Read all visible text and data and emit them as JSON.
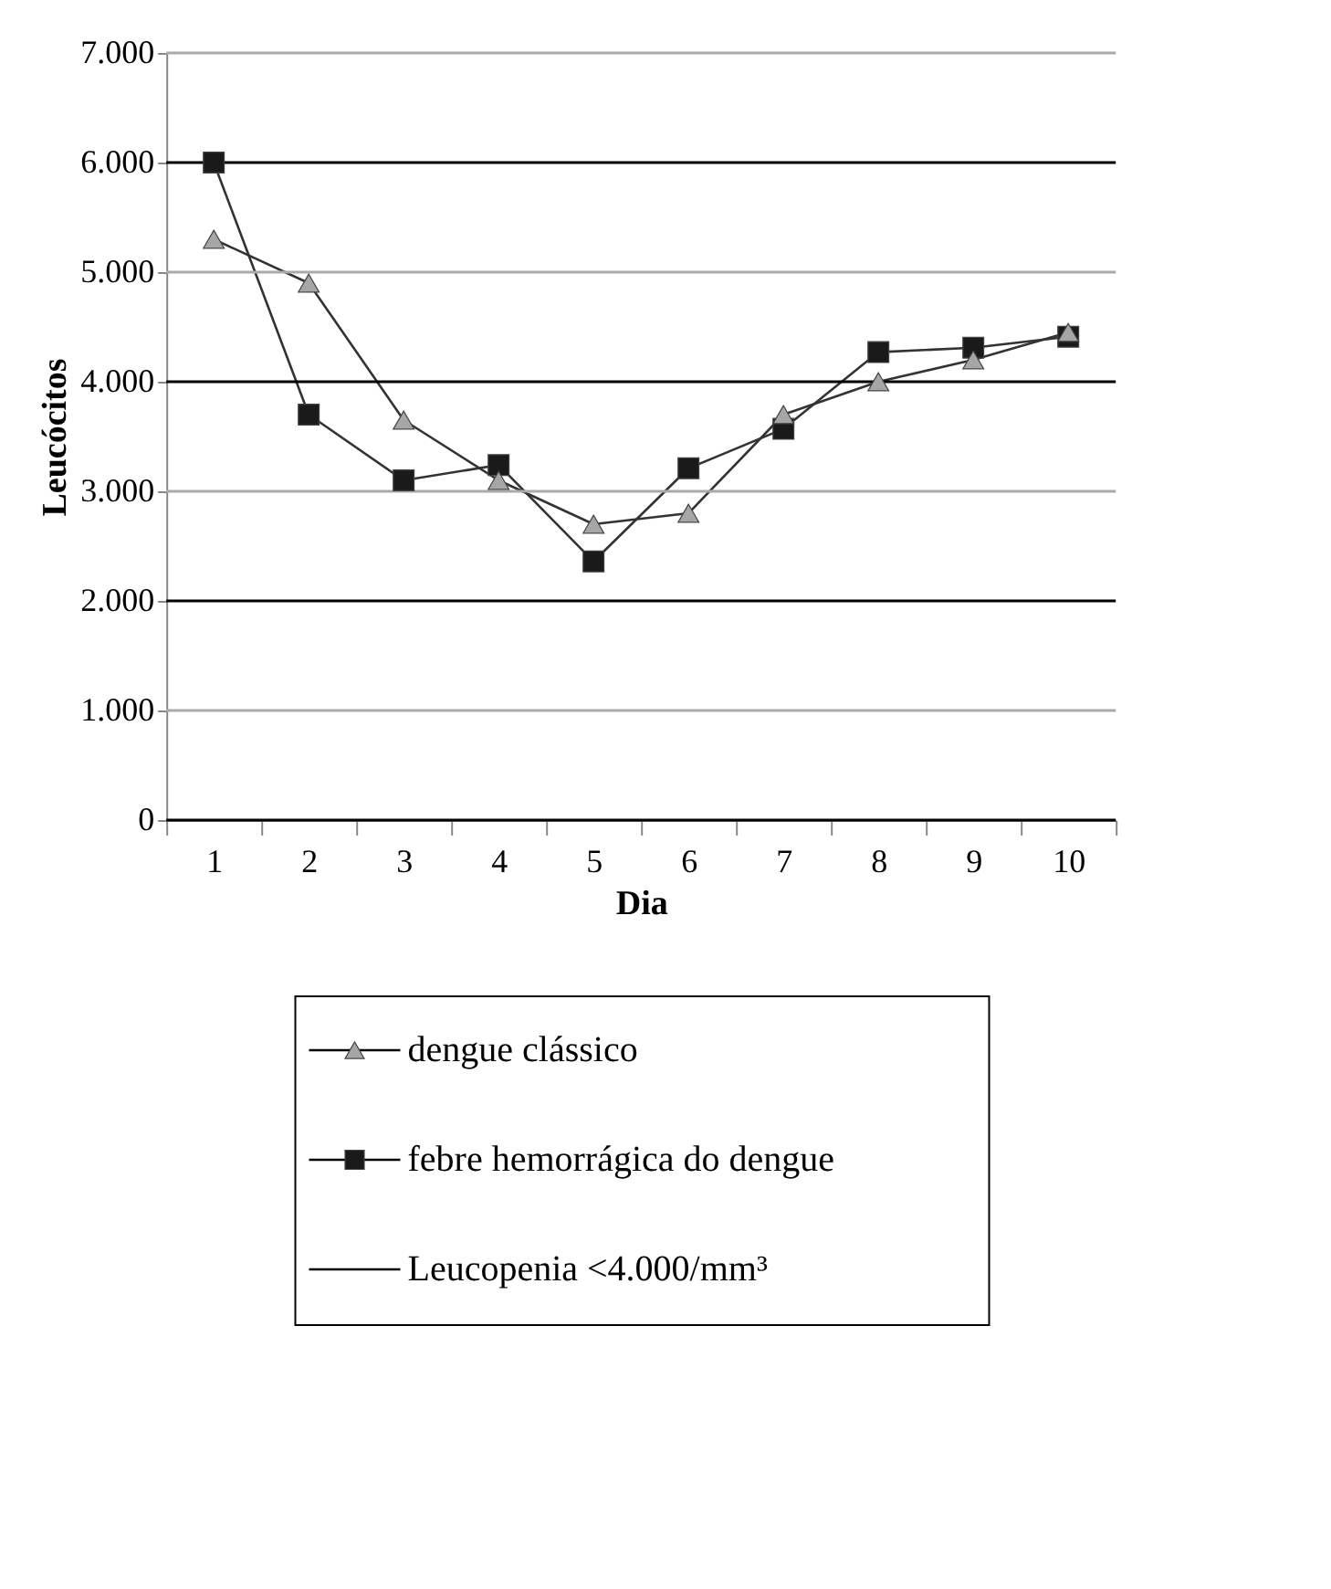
{
  "chart_data": {
    "type": "line",
    "xlabel": "Dia",
    "ylabel": "Leucócitos",
    "categories": [
      "1",
      "2",
      "3",
      "4",
      "5",
      "6",
      "7",
      "8",
      "9",
      "10"
    ],
    "series": [
      {
        "name": "dengue clássico",
        "color": "#a6a6a6",
        "marker": "triangle",
        "values": [
          5300,
          4900,
          3650,
          3100,
          2700,
          2800,
          3700,
          4000,
          4200,
          4450
        ]
      },
      {
        "name": "febre hemorrágica do dengue",
        "color": "#1a1a1a",
        "marker": "square",
        "values": [
          6000,
          3700,
          3100,
          3240,
          2360,
          3210,
          3570,
          4270,
          4310,
          4410
        ]
      }
    ],
    "ylim": [
      0,
      7000
    ],
    "yticks": [
      {
        "value": 0,
        "label": "0"
      },
      {
        "value": 1000,
        "label": "1.000"
      },
      {
        "value": 2000,
        "label": "2.000"
      },
      {
        "value": 3000,
        "label": "3.000"
      },
      {
        "value": 4000,
        "label": "4.000"
      },
      {
        "value": 5000,
        "label": "5.000"
      },
      {
        "value": 6000,
        "label": "6.000"
      },
      {
        "value": 7000,
        "label": "7.000"
      }
    ],
    "annotations": [
      "Leucopenia <4.000/mm³"
    ],
    "grid": "y",
    "legend": "bottom",
    "line_style": "solid"
  }
}
